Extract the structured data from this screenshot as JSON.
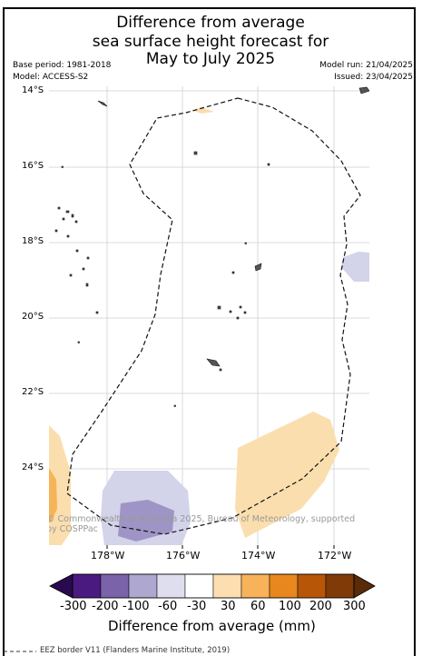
{
  "title": {
    "line1": "Difference from average",
    "line2": "sea surface height forecast for",
    "line3": "May to July 2025"
  },
  "meta": {
    "base_period": "Base period: 1981-2018",
    "model": "Model: ACCESS-S2",
    "model_run": "Model run: 21/04/2025",
    "issued": "Issued: 23/04/2025"
  },
  "map": {
    "lat_labels": [
      "14°S",
      "16°S",
      "18°S",
      "20°S",
      "22°S",
      "24°S"
    ],
    "lon_labels": [
      "178°W",
      "176°W",
      "174°W",
      "172°W"
    ],
    "credit_line1": "© Commonwealth of Australia 2025, Bureau of Meteorology, supported",
    "credit_line2": "by COSPPac",
    "anomaly_colors": {
      "neg300": "#4a1a7e",
      "neg200": "#6d4ea3",
      "neg100": "#9e95c6",
      "neg60": "#d3d3e9",
      "pos30": "#fbdeae",
      "pos60": "#f7b357",
      "pos100": "#e98a1f",
      "pos200": "#b85608",
      "pos300": "#7f3a08"
    }
  },
  "colorbar": {
    "ticks": [
      "-300",
      "-200",
      "-100",
      "-60",
      "-30",
      "30",
      "60",
      "100",
      "200",
      "300"
    ],
    "label": "Difference from average (mm)",
    "colors": [
      "#4b1a80",
      "#7b63a9",
      "#aea7d0",
      "#dedeef",
      "#ffffff",
      "#fcdeb0",
      "#f8b25a",
      "#e7871d",
      "#b85608",
      "#7f3a08"
    ]
  },
  "legend": {
    "eez": "EEZ border V11 (Flanders Marine Institute, 2019)"
  }
}
